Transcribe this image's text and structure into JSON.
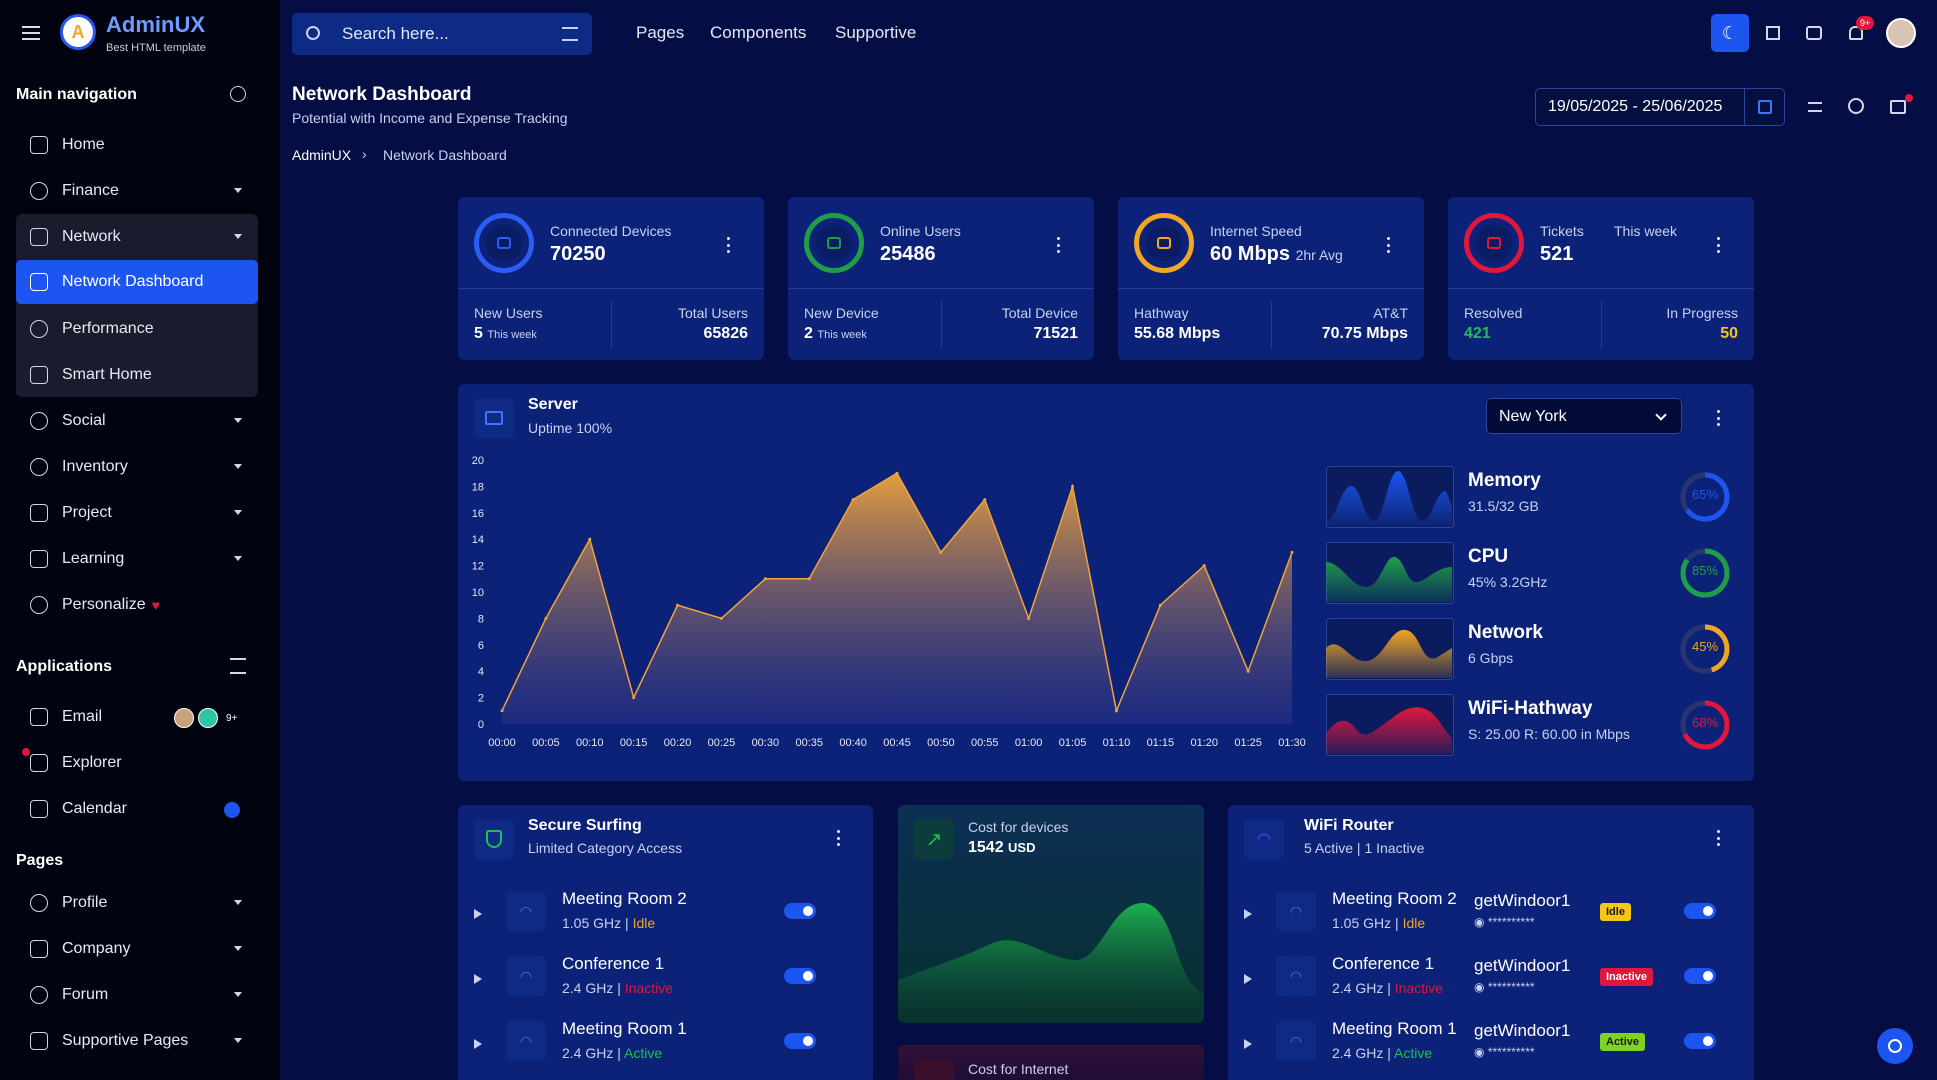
{
  "brand": {
    "name": "AdminUX",
    "sub": "Best HTML template",
    "logo_letter": "A"
  },
  "sidebar": {
    "main_title": "Main navigation",
    "items": [
      {
        "label": "Home"
      },
      {
        "label": "Finance"
      },
      {
        "label": "Network"
      },
      {
        "label": "Network Dashboard"
      },
      {
        "label": "Performance"
      },
      {
        "label": "Smart Home"
      },
      {
        "label": "Social"
      },
      {
        "label": "Inventory"
      },
      {
        "label": "Project"
      },
      {
        "label": "Learning"
      },
      {
        "label": "Personalize"
      }
    ],
    "apps_title": "Applications",
    "apps": [
      {
        "label": "Email",
        "badge": "9+"
      },
      {
        "label": "Explorer"
      },
      {
        "label": "Calendar"
      }
    ],
    "pages_title": "Pages",
    "pages": [
      {
        "label": "Profile"
      },
      {
        "label": "Company"
      },
      {
        "label": "Forum"
      },
      {
        "label": "Supportive Pages"
      }
    ]
  },
  "topbar": {
    "search_placeholder": "Search here...",
    "links": [
      "Pages",
      "Components",
      "Supportive"
    ],
    "notif_count": "9+"
  },
  "page": {
    "title": "Network Dashboard",
    "subtitle": "Potential with Income and Expense Tracking",
    "breadcrumb_root": "AdminUX",
    "breadcrumb_current": "Network Dashboard",
    "date_range": "19/05/2025 - 25/06/2025"
  },
  "kpis": [
    {
      "label": "Connected Devices",
      "value": "70250",
      "left_label": "New Users",
      "left_value": "5",
      "left_note": "This week",
      "right_label": "Total Users",
      "right_value": "65826",
      "ring_color": "#2d5cf3"
    },
    {
      "label": "Online Users",
      "value": "25486",
      "left_label": "New Device",
      "left_value": "2",
      "left_note": "This week",
      "right_label": "Total Device",
      "right_value": "71521",
      "ring_color": "#1f9e4a"
    },
    {
      "label": "Internet Speed",
      "value": "60 Mbps",
      "value_note": "2hr Avg",
      "left_label": "Hathway",
      "left_value": "55.68 Mbps",
      "right_label": "AT&T",
      "right_value": "70.75 Mbps",
      "ring_color": "#f2a623"
    },
    {
      "label": "Tickets",
      "label_right": "This week",
      "value": "521",
      "left_label": "Resolved",
      "left_value": "421",
      "right_label": "In Progress",
      "right_value": "50",
      "ring_color": "#e0173d"
    }
  ],
  "server": {
    "title": "Server",
    "subtitle": "Uptime 100%",
    "location": "New York",
    "resources": [
      {
        "name": "Memory",
        "detail": "31.5/32 GB",
        "pct": "65%",
        "value": 65,
        "color": "#1d55f0"
      },
      {
        "name": "CPU",
        "detail": "45% 3.2GHz",
        "pct": "85%",
        "value": 85,
        "color": "#1f9e4a"
      },
      {
        "name": "Network",
        "detail": "6 Gbps",
        "pct": "45%",
        "value": 45,
        "color": "#f2a623"
      },
      {
        "name": "WiFi-Hathway",
        "detail": "S: 25.00 R: 60.00 in Mbps",
        "pct": "68%",
        "value": 68,
        "color": "#e0173d"
      }
    ]
  },
  "chart_data": {
    "type": "area",
    "title": "",
    "xlabel": "",
    "ylabel": "",
    "ylim": [
      0,
      20
    ],
    "yticks": [
      0,
      2,
      4,
      6,
      8,
      10,
      12,
      14,
      16,
      18,
      20
    ],
    "x": [
      "00:00",
      "00:05",
      "00:10",
      "00:15",
      "00:20",
      "00:25",
      "00:30",
      "00:35",
      "00:40",
      "00:45",
      "00:50",
      "00:55",
      "01:00",
      "01:05",
      "01:10",
      "01:15",
      "01:20",
      "01:25",
      "01:30"
    ],
    "series": [
      {
        "values": [
          1,
          8,
          14,
          2,
          9,
          8,
          11,
          11,
          17,
          19,
          13,
          17,
          8,
          18,
          1,
          9,
          12,
          4,
          13
        ],
        "color": "#f0a43a"
      }
    ]
  },
  "secure": {
    "title": "Secure Surfing",
    "subtitle": "Limited Category Access",
    "rows": [
      {
        "name": "Meeting Room 2",
        "freq": "1.05 GHz",
        "status": "Idle",
        "status_color": "#f2a623"
      },
      {
        "name": "Conference 1",
        "freq": "2.4 GHz",
        "status": "Inactive",
        "status_color": "#e0173d"
      },
      {
        "name": "Meeting Room 1",
        "freq": "2.4 GHz",
        "status": "Active",
        "status_color": "#1fbf4f"
      }
    ]
  },
  "cost_devices": {
    "label": "Cost for devices",
    "value": "1542",
    "unit": "USD"
  },
  "cost_internet": {
    "label": "Cost for Internet"
  },
  "router": {
    "title": "WiFi Router",
    "subtitle": "5 Active | 1 Inactive",
    "rows": [
      {
        "name": "Meeting Room 2",
        "freq": "1.05 GHz",
        "status": "Idle",
        "status_color": "#f2a623",
        "ssid": "getWindoor1",
        "pass": "**********",
        "badge": "Idle",
        "badge_bg": "#f5c518",
        "badge_fg": "#1a1a1a"
      },
      {
        "name": "Conference 1",
        "freq": "2.4 GHz",
        "status": "Inactive",
        "status_color": "#e0173d",
        "ssid": "getWindoor1",
        "pass": "**********",
        "badge": "Inactive",
        "badge_bg": "#e0173d",
        "badge_fg": "#ffffff"
      },
      {
        "name": "Meeting Room 1",
        "freq": "2.4 GHz",
        "status": "Active",
        "status_color": "#1fbf4f",
        "ssid": "getWindoor1",
        "pass": "**********",
        "badge": "Active",
        "badge_bg": "#7ed321",
        "badge_fg": "#1a1a1a"
      }
    ]
  }
}
